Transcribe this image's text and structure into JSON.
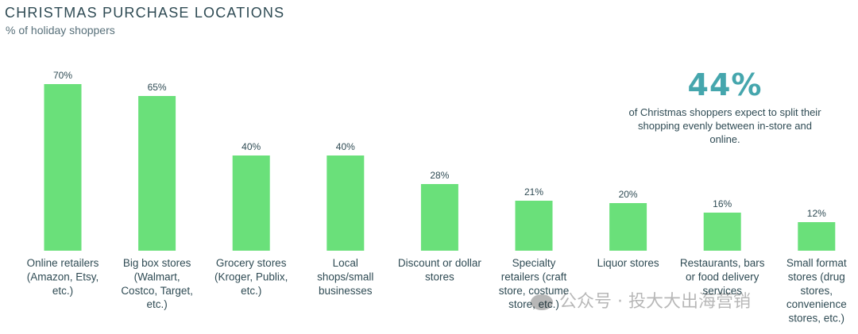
{
  "header": {
    "title": "CHRISTMAS PURCHASE LOCATIONS",
    "subtitle": "% of holiday shoppers"
  },
  "callout": {
    "value": "44%",
    "text": "of Christmas shoppers expect to split their shopping evenly between in-store and online."
  },
  "watermark": "公众号 · 投大大出海营销",
  "colors": {
    "bar": "#6ae07a",
    "callout": "#45a6ad",
    "text": "#2f4b54"
  },
  "chart_data": {
    "type": "bar",
    "title": "CHRISTMAS PURCHASE LOCATIONS",
    "subtitle": "% of holiday shoppers",
    "categories": [
      [
        "Online retailers",
        "(Amazon, Etsy,",
        "etc.)"
      ],
      [
        "Big box stores",
        "(Walmart,",
        "Costco, Target,",
        "etc.)"
      ],
      [
        "Grocery stores",
        "(Kroger, Publix,",
        "etc.)"
      ],
      [
        "Local",
        "shops/small",
        "businesses"
      ],
      [
        "Discount or dollar",
        "stores"
      ],
      [
        "Specialty",
        "retailers (craft",
        "store, costume",
        "store, etc.)"
      ],
      [
        "Liquor stores"
      ],
      [
        "Restaurants, bars",
        "or food delivery",
        "services"
      ],
      [
        "Small format",
        "stores (drug",
        "stores,",
        "convenience",
        "stores, etc.)"
      ]
    ],
    "values": [
      70,
      65,
      40,
      40,
      28,
      21,
      20,
      16,
      12
    ],
    "value_labels": [
      "70%",
      "65%",
      "40%",
      "40%",
      "28%",
      "21%",
      "20%",
      "16%",
      "12%"
    ],
    "ylim": [
      0,
      100
    ],
    "grid": false,
    "legend": "none"
  }
}
